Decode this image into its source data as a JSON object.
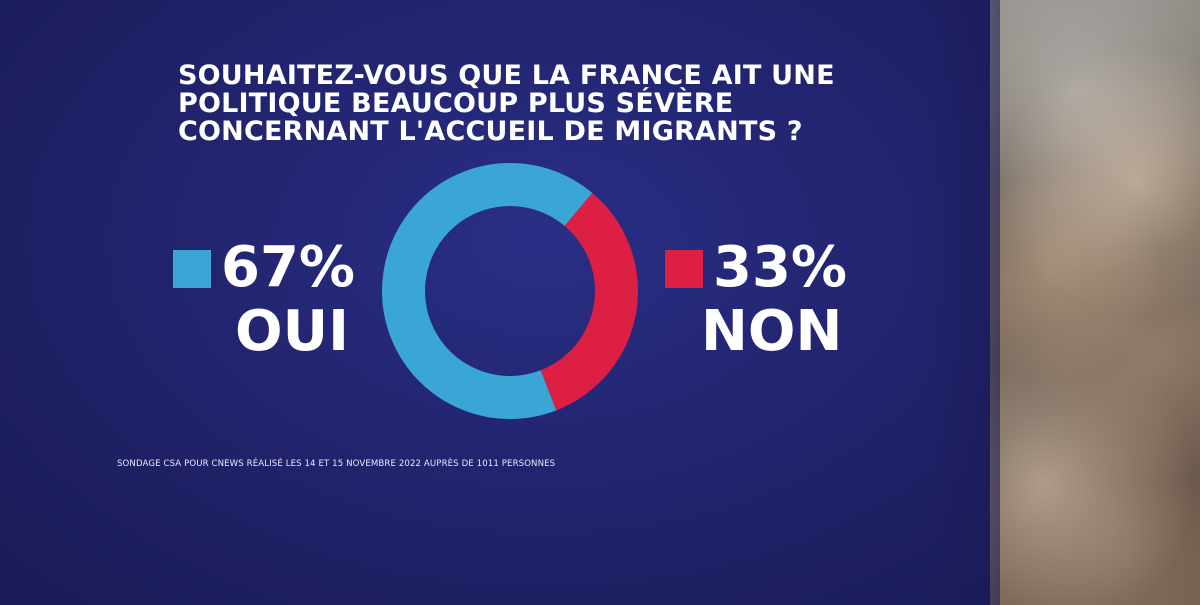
{
  "title": "SOUHAITEZ-VOUS QUE LA FRANCE AIT UNE POLITIQUE BEAUCOUP PLUS SÉVÈRE CONCERNANT L'ACCUEIL DE MIGRANTS ?",
  "source": "SONDAGE CSA POUR CNEWS RÉALISÉ LES 14 ET 15 NOVEMBRE 2022 AUPRÈS DE 1011 PERSONNES",
  "colors": {
    "oui": "#3aa6d5",
    "non": "#dc1f43"
  },
  "legend": {
    "oui": {
      "pct": "67%",
      "label": "OUI"
    },
    "non": {
      "pct": "33%",
      "label": "NON"
    }
  },
  "chart_data": {
    "type": "pie",
    "title": "SOUHAITEZ-VOUS QUE LA FRANCE AIT UNE POLITIQUE BEAUCOUP PLUS SÉVÈRE CONCERNANT L'ACCUEIL DE MIGRANTS ?",
    "categories": [
      "OUI",
      "NON"
    ],
    "values": [
      67,
      33
    ],
    "unit": "%",
    "donut": true
  }
}
